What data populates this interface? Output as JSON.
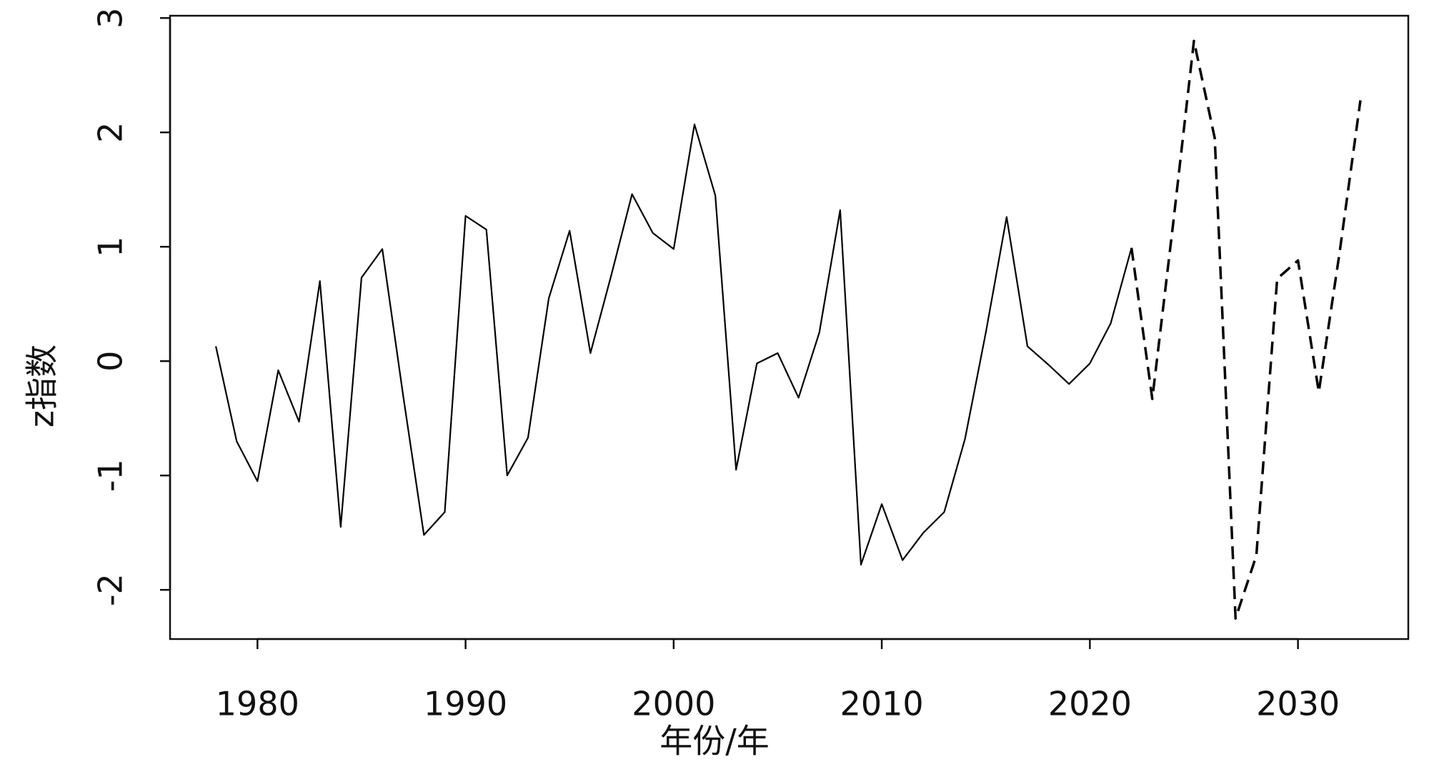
{
  "chart_data": {
    "type": "line",
    "x_label": "年份/年",
    "y_label": "z指数",
    "x": [
      1978,
      1979,
      1980,
      1981,
      1982,
      1983,
      1984,
      1985,
      1986,
      1987,
      1988,
      1989,
      1990,
      1991,
      1992,
      1993,
      1994,
      1995,
      1996,
      1997,
      1998,
      1999,
      2000,
      2001,
      2002,
      2003,
      2004,
      2005,
      2006,
      2007,
      2008,
      2009,
      2010,
      2011,
      2012,
      2013,
      2014,
      2015,
      2016,
      2017,
      2018,
      2019,
      2020,
      2021,
      2022,
      2023,
      2024,
      2025,
      2026,
      2027,
      2028,
      2029,
      2030,
      2031,
      2032,
      2033
    ],
    "series": [
      {
        "color": "#000000",
        "dashed": false,
        "values": [
          0.13,
          -0.7,
          -1.05,
          -0.08,
          -0.53,
          0.7,
          -1.45,
          0.73,
          0.98,
          -0.3,
          -1.52,
          -1.32,
          1.27,
          1.15,
          -1.0,
          -0.67,
          0.55,
          1.14,
          0.07,
          0.75,
          1.46,
          1.12,
          0.98,
          2.07,
          1.45,
          -0.95,
          -0.02,
          0.07,
          -0.32,
          0.25,
          1.32,
          -1.78,
          -1.25,
          -1.74,
          -1.5,
          -1.32,
          -0.68,
          0.25,
          1.26,
          0.13,
          -0.03,
          -0.2,
          -0.02,
          0.33,
          0.99,
          null,
          null,
          null,
          null,
          null,
          null,
          null,
          null,
          null,
          null,
          null
        ]
      },
      {
        "color": "#000000",
        "dashed": true,
        "values": [
          null,
          null,
          null,
          null,
          null,
          null,
          null,
          null,
          null,
          null,
          null,
          null,
          null,
          null,
          null,
          null,
          null,
          null,
          null,
          null,
          null,
          null,
          null,
          null,
          null,
          null,
          null,
          null,
          null,
          null,
          null,
          null,
          null,
          null,
          null,
          null,
          null,
          null,
          null,
          null,
          null,
          null,
          null,
          null,
          0.99,
          -0.33,
          1.2,
          2.8,
          1.95,
          -2.25,
          -1.7,
          0.72,
          0.88,
          -0.27,
          0.95,
          2.28
        ]
      }
    ],
    "xlim": [
      1975.8,
      2035.3
    ],
    "ylim": [
      -2.43,
      3.02
    ],
    "xticks": [
      1980,
      1990,
      2000,
      2010,
      2020,
      2030
    ],
    "yticks": [
      -2,
      -1,
      0,
      1,
      2,
      3
    ]
  }
}
